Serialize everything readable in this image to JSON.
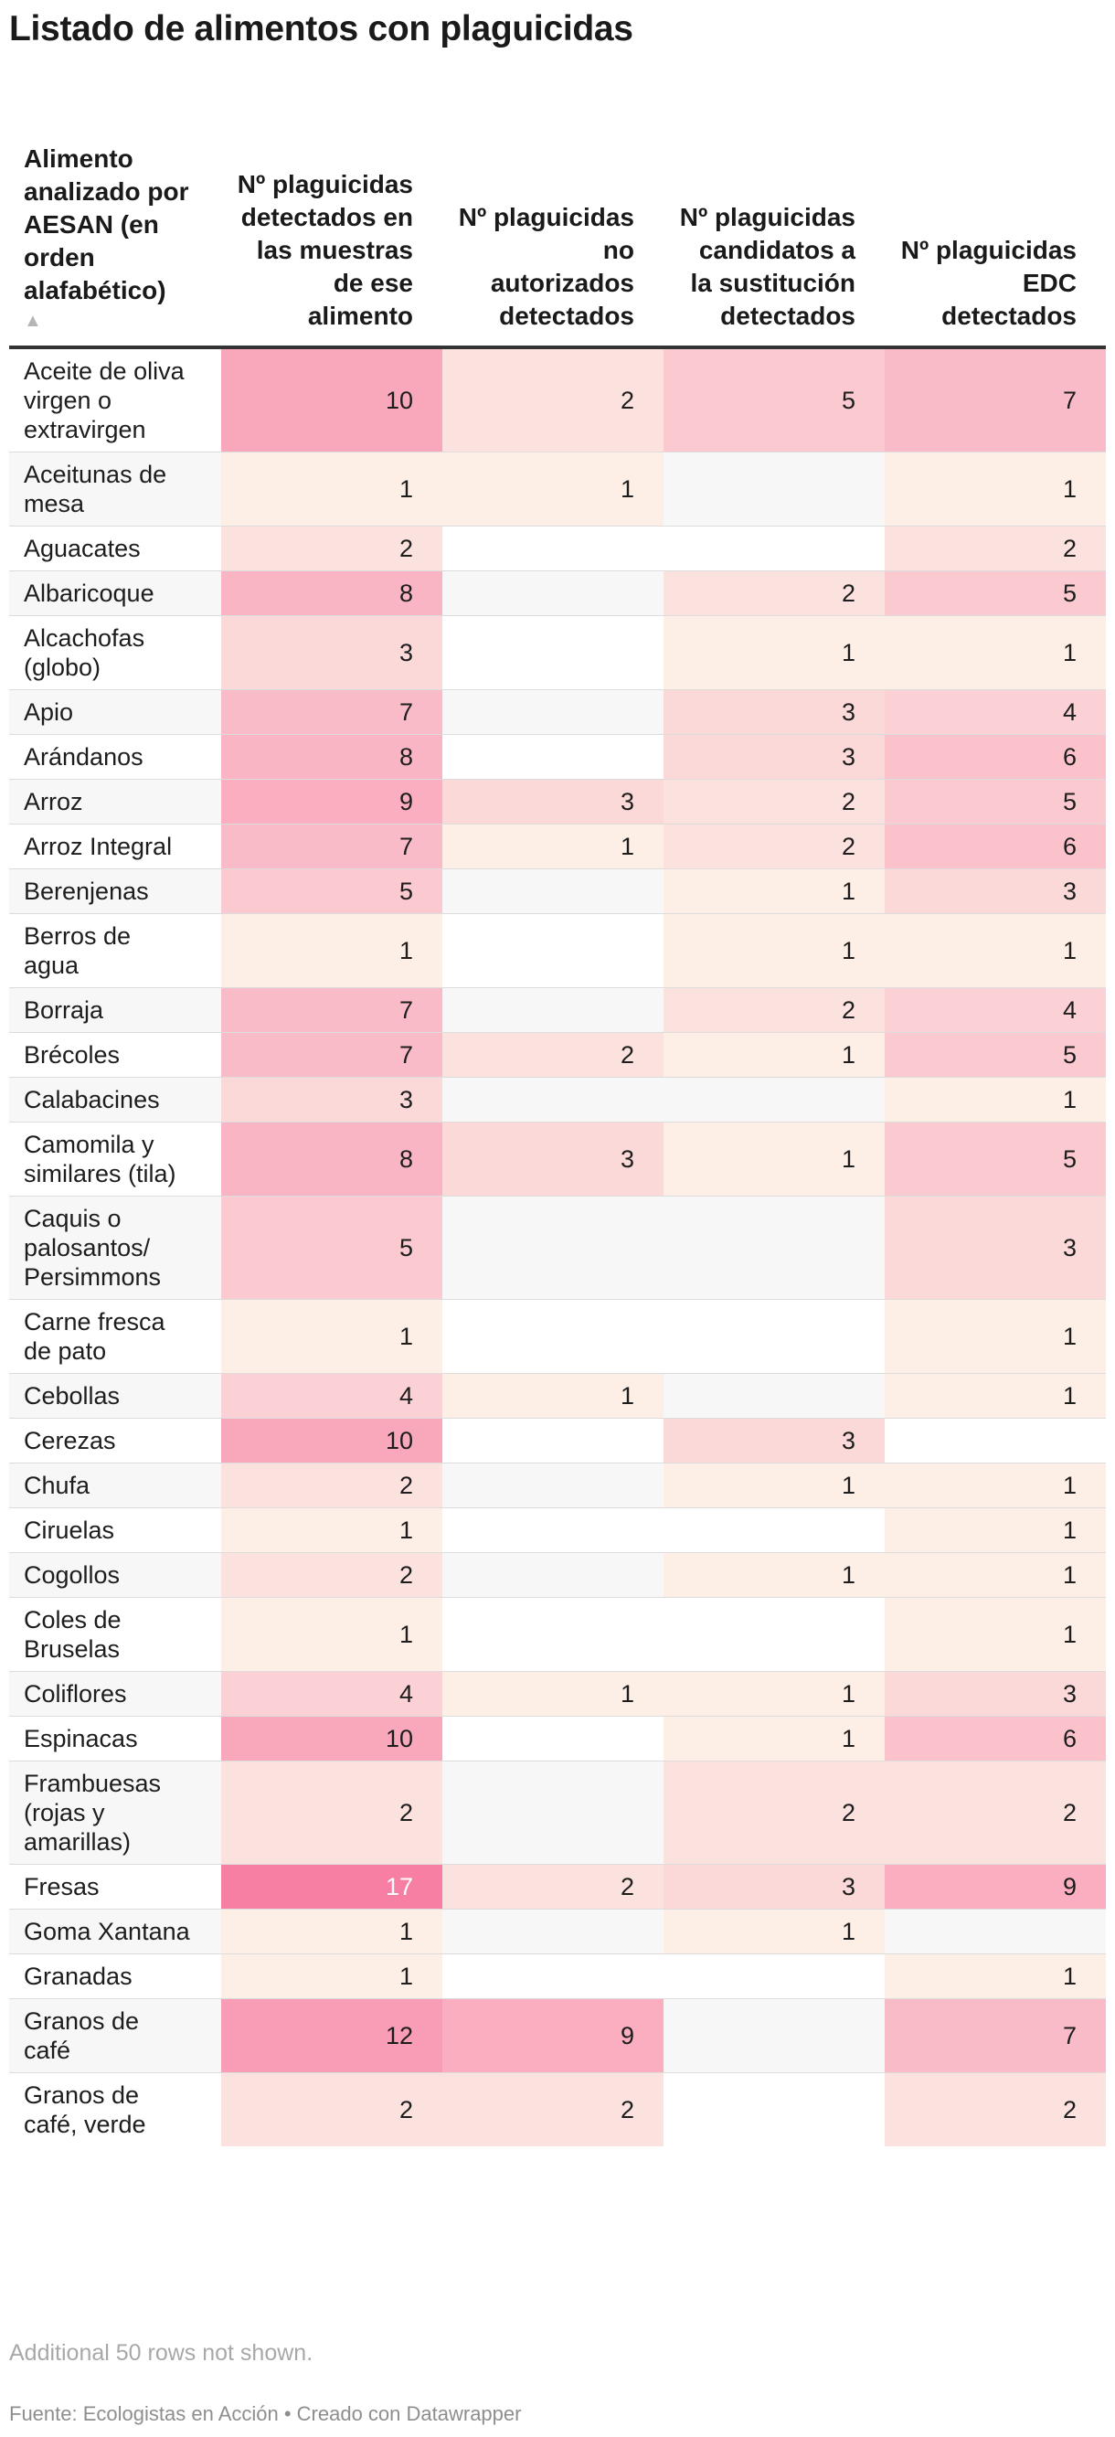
{
  "title": "Listado de alimentos con plaguicidas",
  "sort_indicator": "▲",
  "footer": {
    "note": "Additional 50 rows not shown.",
    "source": "Fuente: Ecologistas en Acción • Creado con Datawrapper"
  },
  "colors": {
    "empty_odd": "#ffffff",
    "empty_even": "#f7f7f7",
    "scale_low": "#fdeee6",
    "scale_high": "#f77fa4"
  },
  "chart_data": {
    "type": "table",
    "columns": [
      "Alimento analizado por AESAN (en orden alafabético)",
      "Nº plaguicidas detectados en las muestras de ese alimento",
      "Nº plaguicidas no autorizados detectados",
      "Nº plaguicidas candidatos a la sustitución detectados",
      "Nº plaguicidas EDC detectados"
    ],
    "scale_max": 17,
    "rows": [
      {
        "name": "Aceite de oliva virgen o extravirgen",
        "values": [
          10,
          2,
          5,
          7
        ]
      },
      {
        "name": "Aceitunas de mesa",
        "values": [
          1,
          1,
          null,
          1
        ]
      },
      {
        "name": "Aguacates",
        "values": [
          2,
          null,
          null,
          2
        ]
      },
      {
        "name": "Albaricoque",
        "values": [
          8,
          null,
          2,
          5
        ]
      },
      {
        "name": "Alcachofas (globo)",
        "values": [
          3,
          null,
          1,
          1
        ]
      },
      {
        "name": "Apio",
        "values": [
          7,
          null,
          3,
          4
        ]
      },
      {
        "name": "Arándanos",
        "values": [
          8,
          null,
          3,
          6
        ]
      },
      {
        "name": "Arroz",
        "values": [
          9,
          3,
          2,
          5
        ]
      },
      {
        "name": "Arroz Integral",
        "values": [
          7,
          1,
          2,
          6
        ]
      },
      {
        "name": "Berenjenas",
        "values": [
          5,
          null,
          1,
          3
        ]
      },
      {
        "name": "Berros de agua",
        "values": [
          1,
          null,
          1,
          1
        ]
      },
      {
        "name": "Borraja",
        "values": [
          7,
          null,
          2,
          4
        ]
      },
      {
        "name": "Brécoles",
        "values": [
          7,
          2,
          1,
          5
        ]
      },
      {
        "name": "Calabacines",
        "values": [
          3,
          null,
          null,
          1
        ]
      },
      {
        "name": "Camomila y similares (tila)",
        "values": [
          8,
          3,
          1,
          5
        ]
      },
      {
        "name": "Caquis o palosantos/ Persimmons",
        "values": [
          5,
          null,
          null,
          3
        ]
      },
      {
        "name": "Carne fresca de pato",
        "values": [
          1,
          null,
          null,
          1
        ]
      },
      {
        "name": "Cebollas",
        "values": [
          4,
          1,
          null,
          1
        ]
      },
      {
        "name": "Cerezas",
        "values": [
          10,
          null,
          3,
          null
        ]
      },
      {
        "name": "Chufa",
        "values": [
          2,
          null,
          1,
          1
        ]
      },
      {
        "name": "Ciruelas",
        "values": [
          1,
          null,
          null,
          1
        ]
      },
      {
        "name": "Cogollos",
        "values": [
          2,
          null,
          1,
          1
        ]
      },
      {
        "name": "Coles de Bruselas",
        "values": [
          1,
          null,
          null,
          1
        ]
      },
      {
        "name": "Coliflores",
        "values": [
          4,
          1,
          1,
          3
        ]
      },
      {
        "name": "Espinacas",
        "values": [
          10,
          null,
          1,
          6
        ]
      },
      {
        "name": "Frambuesas (rojas y amarillas)",
        "values": [
          2,
          null,
          2,
          2
        ]
      },
      {
        "name": "Fresas",
        "values": [
          17,
          2,
          3,
          9
        ]
      },
      {
        "name": "Goma Xantana",
        "values": [
          1,
          null,
          1,
          null
        ]
      },
      {
        "name": "Granadas",
        "values": [
          1,
          null,
          null,
          1
        ]
      },
      {
        "name": "Granos de café",
        "values": [
          12,
          9,
          null,
          7
        ]
      },
      {
        "name": "Granos de café, verde",
        "values": [
          2,
          2,
          null,
          2
        ]
      }
    ]
  }
}
